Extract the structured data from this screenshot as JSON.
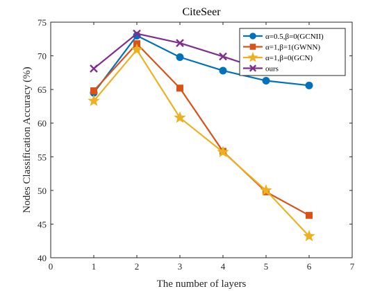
{
  "chart_data": {
    "type": "line",
    "title": "CiteSeer",
    "xlabel": "The number of layers",
    "ylabel": "Nodes Classification Accuracy (%)",
    "xlim": [
      0,
      7
    ],
    "ylim": [
      40,
      75
    ],
    "xticks": [
      0,
      1,
      2,
      3,
      4,
      5,
      6,
      7
    ],
    "yticks": [
      40,
      45,
      50,
      55,
      60,
      65,
      70,
      75
    ],
    "grid": false,
    "legend_position": "top-right",
    "x": [
      1,
      2,
      3,
      4,
      5,
      6
    ],
    "series": [
      {
        "name": "α=0.5,β=0(GCNII)",
        "color": "#0072BD",
        "marker": "circle",
        "values": [
          64.5,
          73.0,
          69.8,
          67.8,
          66.3,
          65.6
        ]
      },
      {
        "name": "α=1,β=1(GWNN)",
        "color": "#D95319",
        "marker": "square",
        "values": [
          64.8,
          71.8,
          65.2,
          55.8,
          49.8,
          46.3
        ]
      },
      {
        "name": "α=1,β=0(GCN)",
        "color": "#EDB120",
        "marker": "star",
        "values": [
          63.3,
          70.9,
          60.8,
          55.7,
          50.0,
          43.2
        ]
      },
      {
        "name": "ours",
        "color": "#7E2F8E",
        "marker": "x",
        "values": [
          68.1,
          73.3,
          71.9,
          69.9,
          67.8,
          67.8
        ]
      }
    ]
  }
}
